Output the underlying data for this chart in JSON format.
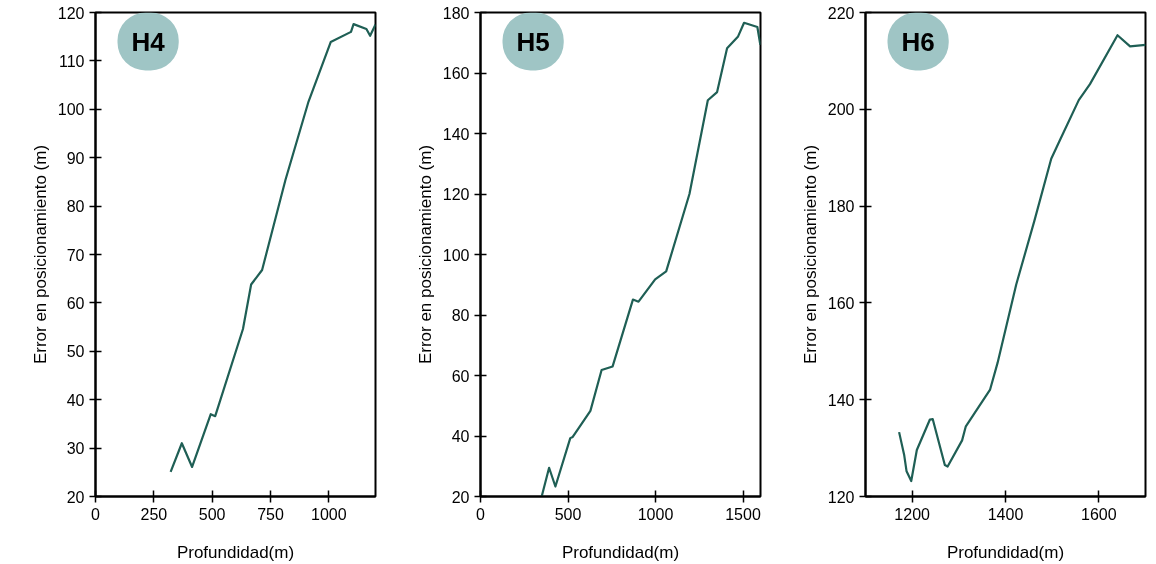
{
  "chart_data": [
    {
      "type": "line",
      "xlabel": "Profundidad(m)",
      "ylabel": "Error en posicionamiento (m)",
      "annotations": [
        "H4"
      ],
      "xlim": [
        0,
        1200
      ],
      "ylim": [
        20,
        120
      ],
      "xticks": [
        0,
        250,
        500,
        750,
        1000
      ],
      "yticks": [
        20,
        30,
        40,
        50,
        60,
        70,
        80,
        90,
        100,
        110,
        120
      ],
      "series": [
        {
          "color": "#1f5f55",
          "x": [
            322,
            370,
            414,
            494,
            513,
            632,
            667,
            714,
            814,
            913,
            1008,
            1095,
            1106,
            1161,
            1177,
            1200
          ],
          "values": [
            25.1,
            31.0,
            26.1,
            37.0,
            36.6,
            54.6,
            63.8,
            66.8,
            85.4,
            101.6,
            113.9,
            116.0,
            117.6,
            116.6,
            115.2,
            117.5
          ]
        }
      ]
    },
    {
      "type": "line",
      "xlabel": "Profundidad(m)",
      "ylabel": "Error en posicionamiento (m)",
      "annotations": [
        "H5"
      ],
      "xlim": [
        0,
        1600
      ],
      "ylim": [
        20,
        180
      ],
      "xticks": [
        0,
        500,
        1000,
        1500
      ],
      "yticks": [
        20,
        40,
        60,
        80,
        100,
        120,
        140,
        160,
        180
      ],
      "series": [
        {
          "color": "#1f5f55",
          "x": [
            350,
            392,
            428,
            513,
            527,
            628,
            692,
            755,
            871,
            903,
            998,
            1061,
            1194,
            1299,
            1352,
            1409,
            1472,
            1506,
            1582,
            1599
          ],
          "values": [
            20.1,
            29.5,
            23.3,
            39.3,
            39.7,
            48.3,
            61.8,
            63.0,
            85.1,
            84.4,
            91.8,
            94.4,
            120.0,
            151.0,
            153.7,
            168.2,
            172.1,
            176.6,
            175.2,
            169.3
          ]
        }
      ]
    },
    {
      "type": "line",
      "xlabel": "Profundidad(m)",
      "ylabel": "Error en posicionamiento (m)",
      "annotations": [
        "H6"
      ],
      "xlim": [
        1100,
        1700
      ],
      "ylim": [
        120,
        220
      ],
      "xticks": [
        1200,
        1400,
        1600
      ],
      "yticks": [
        120,
        140,
        160,
        180,
        200,
        220
      ],
      "series": [
        {
          "color": "#1f5f55",
          "x": [
            1172,
            1183,
            1188,
            1198,
            1210,
            1238,
            1244,
            1270,
            1276,
            1307,
            1315,
            1367,
            1383,
            1423,
            1462,
            1498,
            1518,
            1557,
            1581,
            1640,
            1667,
            1700
          ],
          "values": [
            133.3,
            128.5,
            125.2,
            123.2,
            129.6,
            135.9,
            136.0,
            126.5,
            126.2,
            131.6,
            134.5,
            142.1,
            147.6,
            163.8,
            177.0,
            189.8,
            193.9,
            201.9,
            205.2,
            215.3,
            213.0,
            213.3
          ]
        }
      ]
    }
  ]
}
